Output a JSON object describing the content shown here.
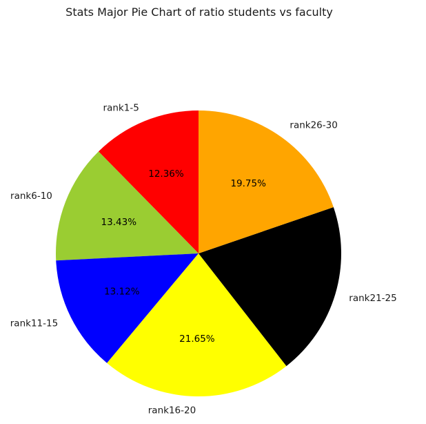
{
  "chart_data": {
    "type": "pie",
    "title": "Stats Major Pie Chart of ratio students vs faculty",
    "slices": [
      {
        "label": "rank1-5",
        "value": 12.36,
        "pct_label": "12.36%",
        "color": "#ff0000"
      },
      {
        "label": "rank6-10",
        "value": 13.43,
        "pct_label": "13.43%",
        "color": "#9acd32"
      },
      {
        "label": "rank11-15",
        "value": 13.12,
        "pct_label": "13.12%",
        "color": "#0000ff"
      },
      {
        "label": "rank16-20",
        "value": 21.65,
        "pct_label": "21.65%",
        "color": "#ffff00"
      },
      {
        "label": "rank21-25",
        "value": 19.69,
        "pct_label": "",
        "color": "#000000"
      },
      {
        "label": "rank26-30",
        "value": 19.75,
        "pct_label": "19.75%",
        "color": "#ffa500"
      }
    ],
    "start_angle": 90,
    "direction": "counterclockwise"
  }
}
